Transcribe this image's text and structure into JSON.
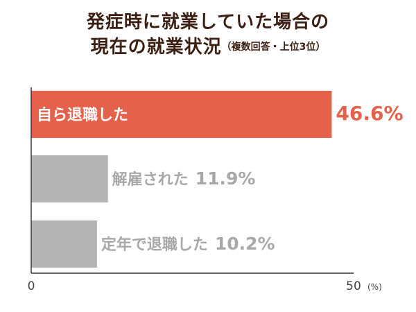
{
  "title": {
    "line1": "発症時に就業していた場合の",
    "line2": "現在の就業状況",
    "note": "（複数回答・上位3位）"
  },
  "chart_data": {
    "type": "bar",
    "orientation": "horizontal",
    "categories": [
      "自ら退職した",
      "解雇された",
      "定年で退職した"
    ],
    "values": [
      46.6,
      11.9,
      10.2
    ],
    "value_labels": [
      "46.6%",
      "11.9%",
      "10.2%"
    ],
    "xlim": [
      0,
      50
    ],
    "ticks": [
      "0",
      "50"
    ],
    "unit": "(%)",
    "colors": {
      "highlight": "#e4614b",
      "default": "#b4b4b4",
      "highlight_text": "#ffffff",
      "default_text": "#a8a8a8",
      "highlight_value": "#e4614b"
    }
  }
}
